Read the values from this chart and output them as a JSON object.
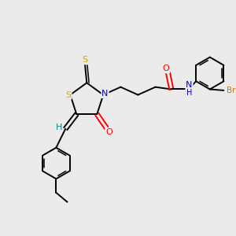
{
  "background_color": "#ebebeb",
  "colors": {
    "bond": "#000000",
    "S": "#ccaa00",
    "N": "#0000cc",
    "O": "#ff0000",
    "H": "#008888",
    "Br": "#cc7700"
  }
}
